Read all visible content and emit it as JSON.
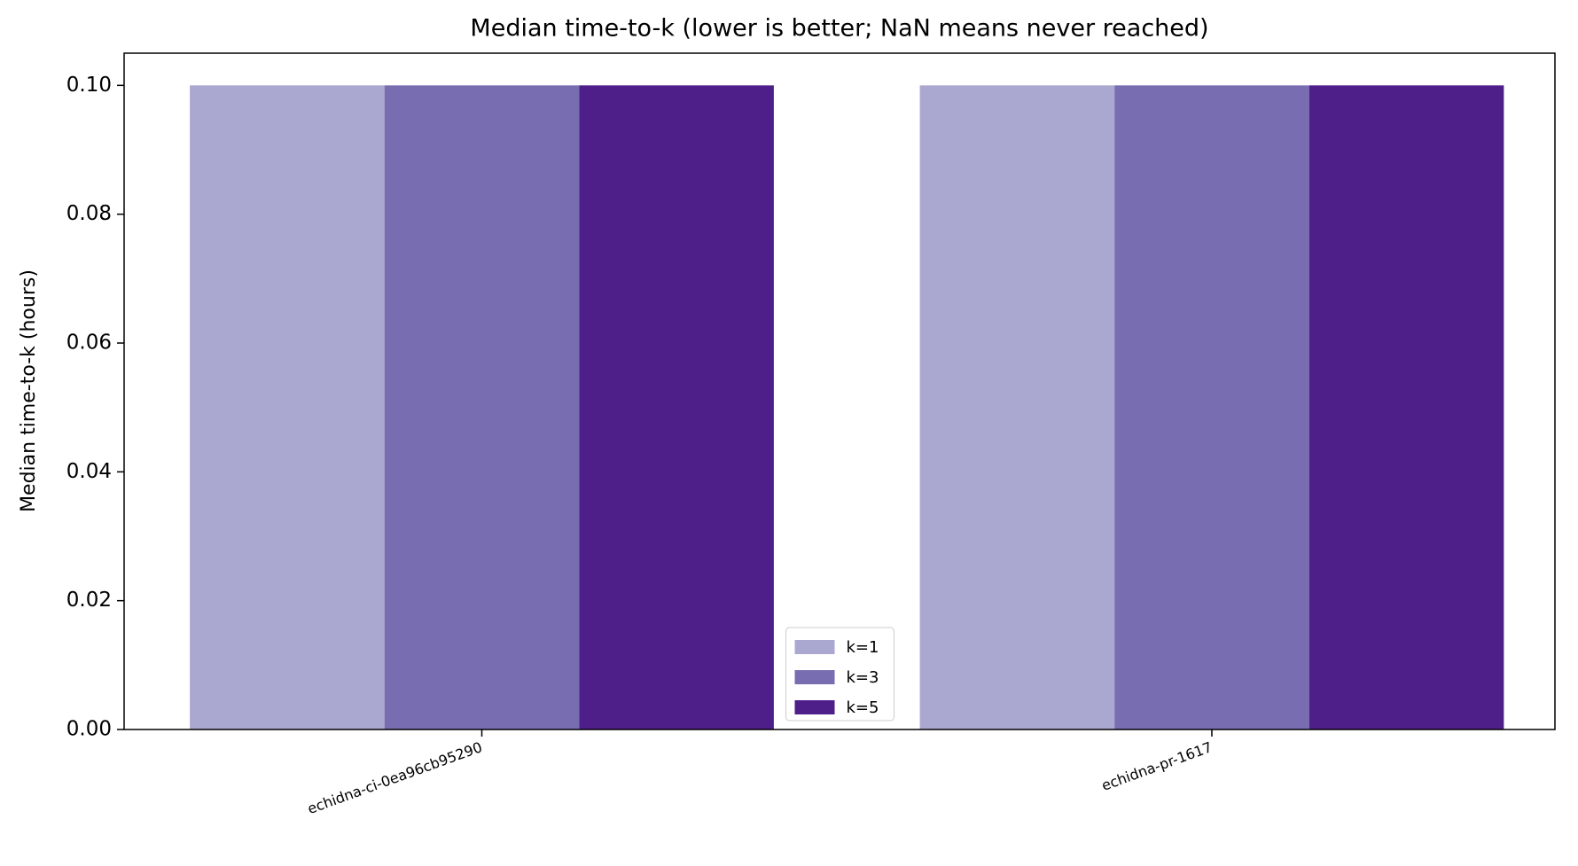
{
  "chart_data": {
    "type": "bar",
    "title": "Median time-to-k (lower is better; NaN means never reached)",
    "y_label": "Median time-to-k (hours)",
    "categories": [
      "echidna-ci-0ea96cb95290",
      "echidna-pr-1617"
    ],
    "series": [
      {
        "name": "k=1",
        "color": "#aaa8d0",
        "values": [
          0.1,
          0.1
        ]
      },
      {
        "name": "k=3",
        "color": "#776db0",
        "values": [
          0.1,
          0.1
        ]
      },
      {
        "name": "k=5",
        "color": "#4e1e89",
        "values": [
          0.1,
          0.1
        ]
      }
    ],
    "ylim": [
      0,
      0.105
    ],
    "yticks": [
      {
        "value": 0,
        "label": "0.00"
      },
      {
        "value": 0.02,
        "label": "0.02"
      },
      {
        "value": 0.04,
        "label": "0.04"
      },
      {
        "value": 0.06,
        "label": "0.06"
      },
      {
        "value": 0.08,
        "label": "0.08"
      },
      {
        "value": 0.1,
        "label": "0.10"
      }
    ],
    "legend": "lower center"
  }
}
